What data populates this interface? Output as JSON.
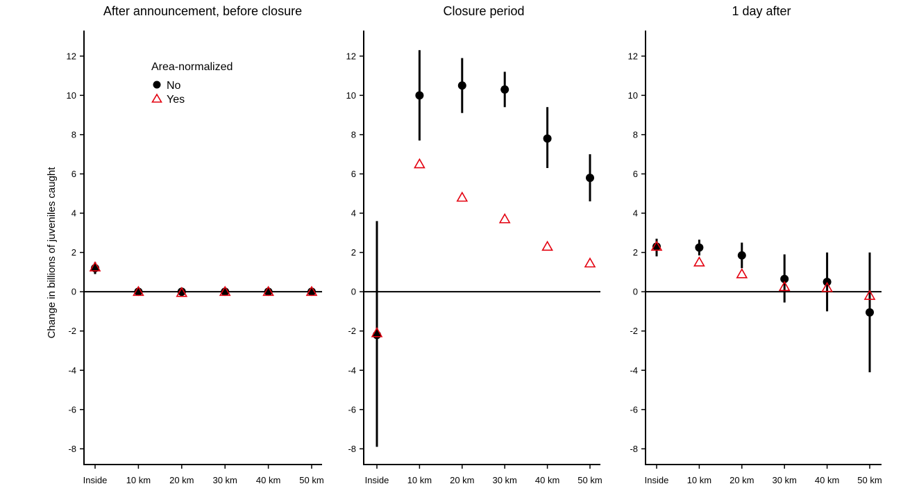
{
  "figure": {
    "ylabel": "Change in billions of juveniles caught"
  },
  "legend": {
    "title": "Area-normalized",
    "entries": [
      {
        "label": "No",
        "marker": "filled-circle",
        "color": "#000000"
      },
      {
        "label": "Yes",
        "marker": "open-triangle",
        "color": "#e3000f"
      }
    ]
  },
  "chart_data": [
    {
      "type": "scatter",
      "title": "After announcement, before closure",
      "categories": [
        "Inside",
        "10 km",
        "20 km",
        "30 km",
        "40 km",
        "50 km"
      ],
      "ylim": [
        -8.8,
        13.3
      ],
      "yticks": [
        -8,
        -6,
        -4,
        -2,
        0,
        2,
        4,
        6,
        8,
        10,
        12
      ],
      "series": [
        {
          "name": "No",
          "values": [
            1.2,
            0.0,
            0.0,
            0.0,
            0.0,
            0.0
          ],
          "err_low": [
            0.9,
            -0.1,
            -0.1,
            -0.1,
            -0.1,
            -0.1
          ],
          "err_high": [
            1.5,
            0.1,
            0.1,
            0.1,
            0.1,
            0.1
          ]
        },
        {
          "name": "Yes",
          "values": [
            1.25,
            0.0,
            -0.05,
            0.0,
            0.0,
            0.0
          ]
        }
      ]
    },
    {
      "type": "scatter",
      "title": "Closure period",
      "categories": [
        "Inside",
        "10 km",
        "20 km",
        "30 km",
        "40 km",
        "50 km"
      ],
      "ylim": [
        -8.8,
        13.3
      ],
      "yticks": [
        -8,
        -6,
        -4,
        -2,
        0,
        2,
        4,
        6,
        8,
        10,
        12
      ],
      "series": [
        {
          "name": "No",
          "values": [
            -2.2,
            10.0,
            10.5,
            10.3,
            7.8,
            5.8
          ],
          "err_low": [
            -7.9,
            7.7,
            9.1,
            9.4,
            6.3,
            4.6
          ],
          "err_high": [
            3.6,
            12.3,
            11.9,
            11.2,
            9.4,
            7.0
          ]
        },
        {
          "name": "Yes",
          "values": [
            -2.1,
            6.5,
            4.8,
            3.7,
            2.3,
            1.45
          ]
        }
      ]
    },
    {
      "type": "scatter",
      "title": "1 day after",
      "categories": [
        "Inside",
        "10 km",
        "20 km",
        "30 km",
        "40 km",
        "50 km"
      ],
      "ylim": [
        -8.8,
        13.3
      ],
      "yticks": [
        -8,
        -6,
        -4,
        -2,
        0,
        2,
        4,
        6,
        8,
        10,
        12
      ],
      "series": [
        {
          "name": "No",
          "values": [
            2.3,
            2.25,
            1.85,
            0.65,
            0.5,
            -1.05
          ],
          "err_low": [
            1.8,
            1.85,
            1.2,
            -0.55,
            -1.0,
            -4.1
          ],
          "err_high": [
            2.7,
            2.65,
            2.5,
            1.9,
            2.0,
            2.0
          ]
        },
        {
          "name": "Yes",
          "values": [
            2.3,
            1.5,
            0.9,
            0.25,
            0.2,
            -0.2
          ]
        }
      ]
    }
  ]
}
